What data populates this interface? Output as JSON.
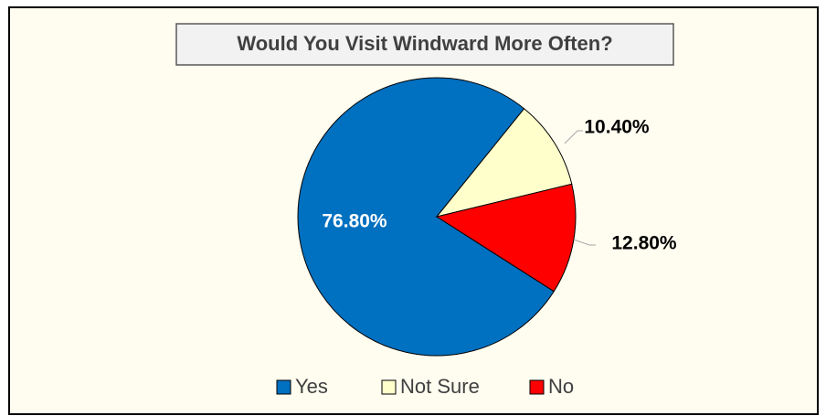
{
  "chart_data": {
    "type": "pie",
    "title": "Would You Visit Windward More Often?",
    "categories": [
      "Yes",
      "Not Sure",
      "No"
    ],
    "values": [
      76.8,
      10.4,
      12.8
    ],
    "value_labels": [
      "76.80%",
      "10.40%",
      "12.80%"
    ],
    "colors": [
      "#0070c0",
      "#ffffcc",
      "#ff0000"
    ],
    "legend": "bottom"
  }
}
